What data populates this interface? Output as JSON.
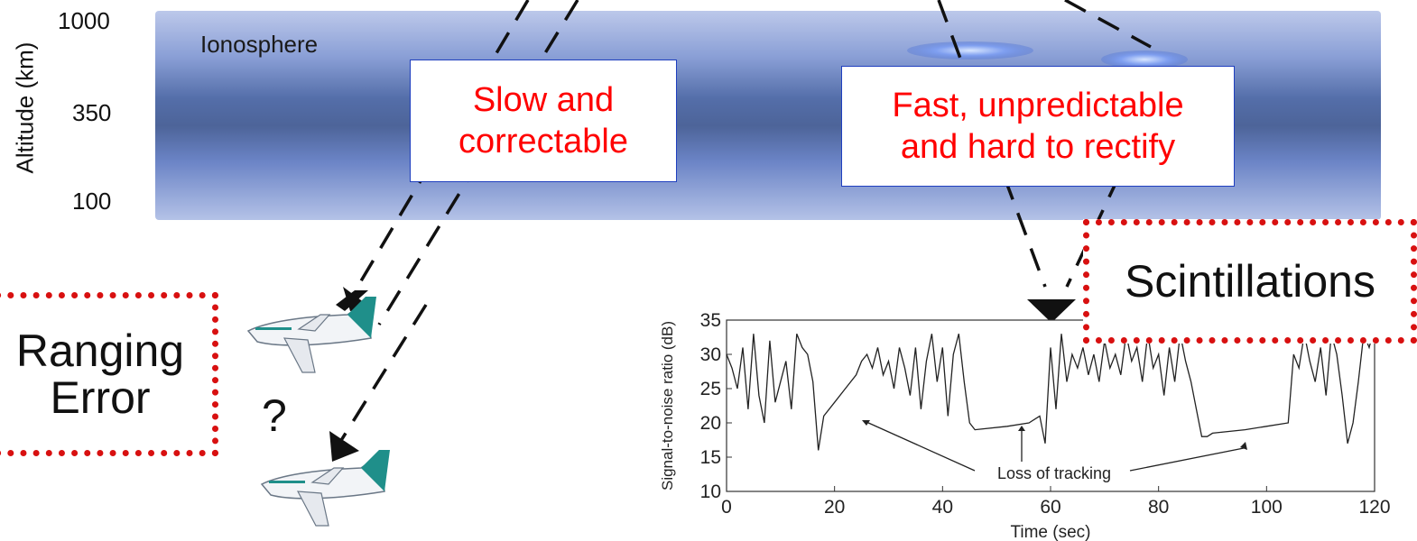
{
  "altitude": {
    "label": "Altitude (km)",
    "ticks": [
      "1000",
      "350",
      "100"
    ]
  },
  "ionosphere_label": "Ionosphere",
  "callouts": {
    "slow": [
      "Slow and",
      "correctable"
    ],
    "fast": [
      "Fast, unpredictable",
      "and hard to rectify"
    ]
  },
  "ranging_error": [
    "Ranging",
    "Error"
  ],
  "scintillations": "Scintillations",
  "question_mark": "?",
  "colors": {
    "callout_text": "#ff0000",
    "callout_border": "#1f3fbf",
    "dotted_border": "#d81010",
    "ionosphere_dark": "#4d6499",
    "aircraft_tail": "#1f8f8a"
  },
  "chart_data": {
    "type": "line",
    "ylabel": "Signal-to-noise ratio (dB)",
    "xlabel": "Time (sec)",
    "xlim": [
      0,
      120
    ],
    "ylim": [
      10,
      35
    ],
    "xticks": [
      "0",
      "20",
      "40",
      "60",
      "80",
      "100",
      "120"
    ],
    "yticks": [
      "10",
      "15",
      "20",
      "25",
      "30",
      "35"
    ],
    "annotation": "Loss of tracking",
    "series": [
      {
        "x": [
          0,
          1,
          2,
          3,
          4,
          5,
          6,
          7,
          8,
          9,
          10,
          11,
          12,
          13,
          14,
          15,
          16,
          17,
          18,
          20,
          22,
          24,
          25,
          26,
          27,
          28,
          29,
          30,
          31,
          32,
          33,
          34,
          35,
          36,
          37,
          38,
          39,
          40,
          41,
          42,
          43,
          44,
          45,
          46,
          52,
          56,
          58,
          59,
          60,
          61,
          62,
          63,
          64,
          65,
          66,
          67,
          68,
          69,
          70,
          71,
          72,
          73,
          74,
          75,
          76,
          77,
          78,
          79,
          80,
          81,
          82,
          83,
          84,
          85,
          86,
          87,
          88,
          89,
          90,
          96,
          100,
          104,
          105,
          106,
          107,
          108,
          109,
          110,
          111,
          112,
          113,
          114,
          115,
          116,
          117,
          118,
          119,
          120
        ],
        "y": [
          30,
          28,
          25,
          31,
          22,
          33,
          24,
          20,
          32,
          23,
          26,
          29,
          22,
          33,
          31,
          30,
          26,
          16,
          21,
          23,
          25,
          27,
          29,
          30,
          28,
          31,
          27,
          29,
          25,
          31,
          28,
          24,
          31,
          22,
          29,
          33,
          26,
          31,
          21,
          30,
          33,
          26,
          20,
          19,
          19.5,
          20,
          21,
          17,
          31,
          22,
          33,
          26,
          30,
          28,
          31,
          27,
          30,
          26,
          32,
          28,
          30,
          27,
          33,
          29,
          31,
          26,
          33,
          28,
          30,
          24,
          31,
          26,
          33,
          29,
          26,
          22,
          18,
          18,
          18.5,
          19,
          19.5,
          20,
          30,
          28,
          33,
          29,
          26,
          31,
          24,
          33,
          30,
          24,
          17,
          20,
          26,
          33,
          31,
          34
        ]
      }
    ]
  }
}
